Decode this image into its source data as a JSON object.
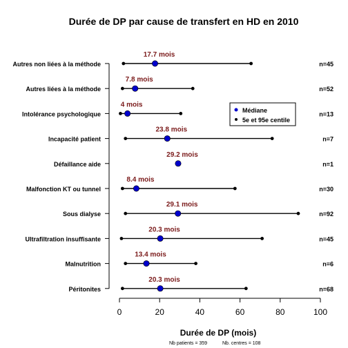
{
  "chart_data": {
    "type": "dot-range",
    "title": "Durée de DP par cause de transfert en HD en 2010",
    "xlabel": "Durée de DP (mois)",
    "xlim": [
      0,
      100
    ],
    "xticks": [
      "0",
      "20",
      "40",
      "60",
      "80",
      "100"
    ],
    "xtick_values": [
      0,
      20,
      40,
      60,
      80,
      100
    ],
    "legend": {
      "placement": "right",
      "items": [
        {
          "label": "Médiane",
          "color": "#0000cc"
        },
        {
          "label": "5e et 95e centile",
          "color": "#000000"
        }
      ]
    },
    "footer": {
      "patients": "Nb patients =  359",
      "centres": "Nb. centres =  108"
    },
    "colors": {
      "median": "#0000cc",
      "percentile": "#000000",
      "annotation": "#7a1a1a"
    },
    "categories": [
      {
        "label": "Autres non liées à la méthode",
        "p5": 2,
        "median": 17.7,
        "p95": 65.5,
        "median_label": "17.7 mois",
        "n": "n=45"
      },
      {
        "label": "Autres liées à la méthode",
        "p5": 1.5,
        "median": 7.8,
        "p95": 36.5,
        "median_label": "7.8 mois",
        "n": "n=52"
      },
      {
        "label": "Intolérance psychologique",
        "p5": 0.5,
        "median": 4,
        "p95": 30.5,
        "median_label": "4 mois",
        "n": "n=13"
      },
      {
        "label": "Incapacité patient",
        "p5": 3,
        "median": 23.8,
        "p95": 76,
        "median_label": "23.8 mois",
        "n": "n=7"
      },
      {
        "label": "Défaillance aide",
        "p5": 29.2,
        "median": 29.2,
        "p95": 29.2,
        "median_label": "29.2 mois",
        "n": "n=1"
      },
      {
        "label": "Malfonction KT ou tunnel",
        "p5": 1.5,
        "median": 8.4,
        "p95": 57.5,
        "median_label": "8.4 mois",
        "n": "n=30"
      },
      {
        "label": "Sous dialyse",
        "p5": 3,
        "median": 29.1,
        "p95": 89,
        "median_label": "29.1 mois",
        "n": "n=92"
      },
      {
        "label": "Ultrafiltration insuffisante",
        "p5": 1,
        "median": 20.3,
        "p95": 71,
        "median_label": "20.3 mois",
        "n": "n=45"
      },
      {
        "label": "Malnutrition",
        "p5": 3,
        "median": 13.4,
        "p95": 38,
        "median_label": "13.4 mois",
        "n": "n=6"
      },
      {
        "label": "Péritonites",
        "p5": 1.5,
        "median": 20.3,
        "p95": 63,
        "median_label": "20.3 mois",
        "n": "n=68"
      }
    ]
  }
}
